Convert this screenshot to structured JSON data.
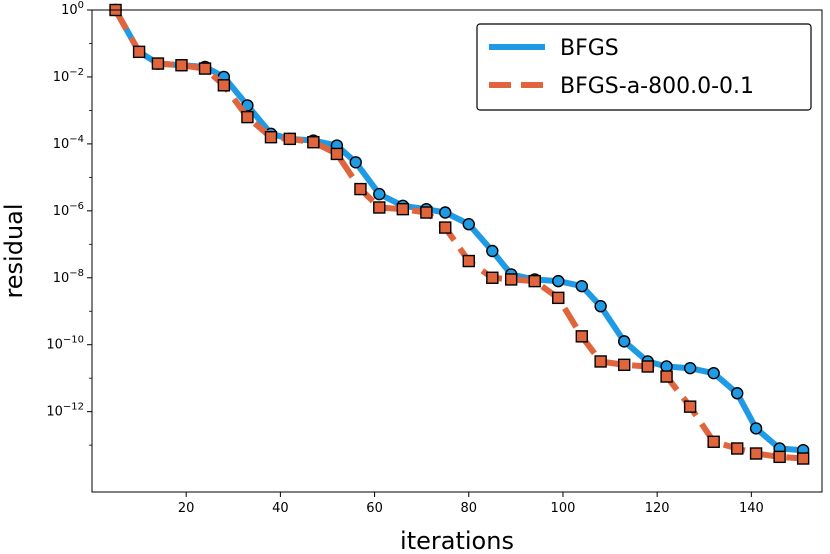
{
  "chart_data": {
    "type": "line",
    "title": "",
    "xlabel": "iterations",
    "ylabel": "residual",
    "yscale": "log",
    "xlim": [
      0,
      155
    ],
    "ylim_exp": [
      -14.4,
      0
    ],
    "xticks": [
      20,
      40,
      60,
      80,
      100,
      120,
      140
    ],
    "yticks": [
      {
        "base": "10",
        "exp": "0",
        "value": 0
      },
      {
        "base": "10",
        "exp": "−2",
        "value": -2
      },
      {
        "base": "10",
        "exp": "−4",
        "value": -4
      },
      {
        "base": "10",
        "exp": "−6",
        "value": -6
      },
      {
        "base": "10",
        "exp": "−8",
        "value": -8
      },
      {
        "base": "10",
        "exp": "−10",
        "value": -10
      },
      {
        "base": "10",
        "exp": "−12",
        "value": -12
      }
    ],
    "legend_position": "top-right",
    "series": [
      {
        "name": "BFGS",
        "color": "#1f9be6",
        "style": "solid",
        "marker": "circle",
        "x": [
          5,
          10,
          14,
          19,
          24,
          28,
          33,
          38,
          42,
          47,
          52,
          56,
          61,
          66,
          71,
          75,
          80,
          85,
          89,
          94,
          99,
          104,
          108,
          113,
          118,
          122,
          127,
          132,
          137,
          141,
          146,
          151
        ],
        "log10_y": [
          0,
          -1.25,
          -1.6,
          -1.65,
          -1.7,
          -2,
          -2.85,
          -3.7,
          -3.85,
          -3.9,
          -4.05,
          -4.55,
          -5.5,
          -5.85,
          -5.95,
          -6.05,
          -6.4,
          -7.2,
          -7.9,
          -8.05,
          -8.1,
          -8.25,
          -8.85,
          -9.9,
          -10.5,
          -10.65,
          -10.7,
          -10.85,
          -11.45,
          -12.5,
          -13.1,
          -13.15
        ]
      },
      {
        "name": "BFGS-a-800.0-0.1",
        "color": "#e0643c",
        "style": "dashed",
        "marker": "square",
        "x": [
          5,
          10,
          14,
          19,
          24,
          28,
          33,
          38,
          42,
          47,
          52,
          57,
          61,
          66,
          71,
          75,
          80,
          85,
          89,
          94,
          99,
          104,
          108,
          113,
          118,
          122,
          127,
          132,
          137,
          141,
          146,
          151
        ],
        "log10_y": [
          0,
          -1.25,
          -1.6,
          -1.65,
          -1.75,
          -2.25,
          -3.2,
          -3.8,
          -3.85,
          -3.95,
          -4.3,
          -5.35,
          -5.9,
          -5.95,
          -6.05,
          -6.5,
          -7.5,
          -8.0,
          -8.05,
          -8.1,
          -8.6,
          -9.75,
          -10.5,
          -10.6,
          -10.65,
          -10.95,
          -11.85,
          -12.9,
          -13.1,
          -13.25,
          -13.35,
          -13.4
        ]
      }
    ]
  }
}
